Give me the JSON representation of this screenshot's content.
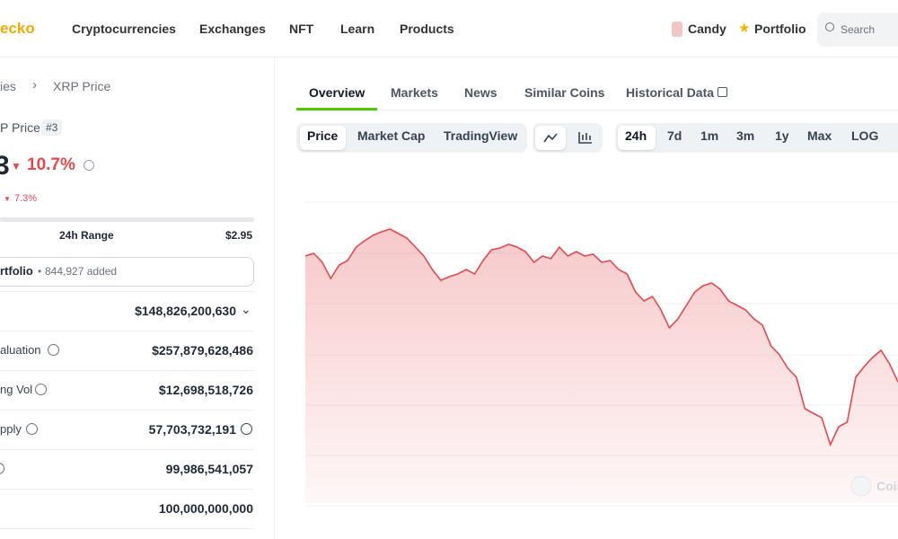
{
  "header": {
    "logo": "ecko",
    "nav": [
      "Cryptocurrencies",
      "Exchanges",
      "NFT",
      "Learn",
      "Products"
    ],
    "candy": "Candy",
    "portfolio": "Portfolio",
    "search": "Search"
  },
  "sidebar": {
    "breadcrumb": [
      "ies",
      "XRP Price"
    ],
    "coin_label": "P Price",
    "rank": "#3",
    "price": "3",
    "change_24h": "10.7%",
    "change_sub": "7.3%",
    "range_label": "24h Range",
    "range_high": "$2.95",
    "portfolio": "rtfolio",
    "portfolio_added": "844,927 added",
    "stats": [
      {
        "value": "$148,826,200,630"
      },
      {
        "label": "aluation",
        "value": "$257,879,628,486"
      },
      {
        "label": "ng Vol",
        "value": "$12,698,518,726"
      },
      {
        "label": "pply",
        "value": "57,703,732,191"
      },
      {
        "value": "99,986,541,057"
      },
      {
        "value": "100,000,000,000"
      }
    ]
  },
  "main": {
    "tabs": [
      "Overview",
      "Markets",
      "News",
      "Similar Coins",
      "Historical Data"
    ],
    "chart_types": [
      "Price",
      "Market Cap",
      "TradingView"
    ],
    "ranges": [
      "24h",
      "7d",
      "1m",
      "3m",
      "1y",
      "Max",
      "LOG"
    ],
    "watermark": "Coin",
    "price_chart": {
      "type": "area",
      "color": "#e5484d",
      "ylim": [
        2.46,
        3.0
      ],
      "values": [
        2.8725,
        2.877,
        2.862,
        2.835,
        2.8575,
        2.865,
        2.8875,
        2.898,
        2.907,
        2.913,
        2.9175,
        2.91,
        2.9025,
        2.8875,
        2.8725,
        2.85,
        2.832,
        2.838,
        2.8425,
        2.85,
        2.8425,
        2.865,
        2.883,
        2.886,
        2.892,
        2.8875,
        2.88,
        2.862,
        2.8725,
        2.868,
        2.8875,
        2.8725,
        2.88,
        2.8725,
        2.8755,
        2.862,
        2.865,
        2.85,
        2.8425,
        2.8125,
        2.7975,
        2.805,
        2.7825,
        2.7525,
        2.7675,
        2.79,
        2.8125,
        2.823,
        2.8275,
        2.817,
        2.7975,
        2.79,
        2.7825,
        2.7675,
        2.757,
        2.7225,
        2.7075,
        2.685,
        2.67,
        2.6175,
        2.61,
        2.6025,
        2.5575,
        2.5875,
        2.595,
        2.67,
        2.688,
        2.703,
        2.715,
        2.6925,
        2.6625
      ]
    }
  }
}
